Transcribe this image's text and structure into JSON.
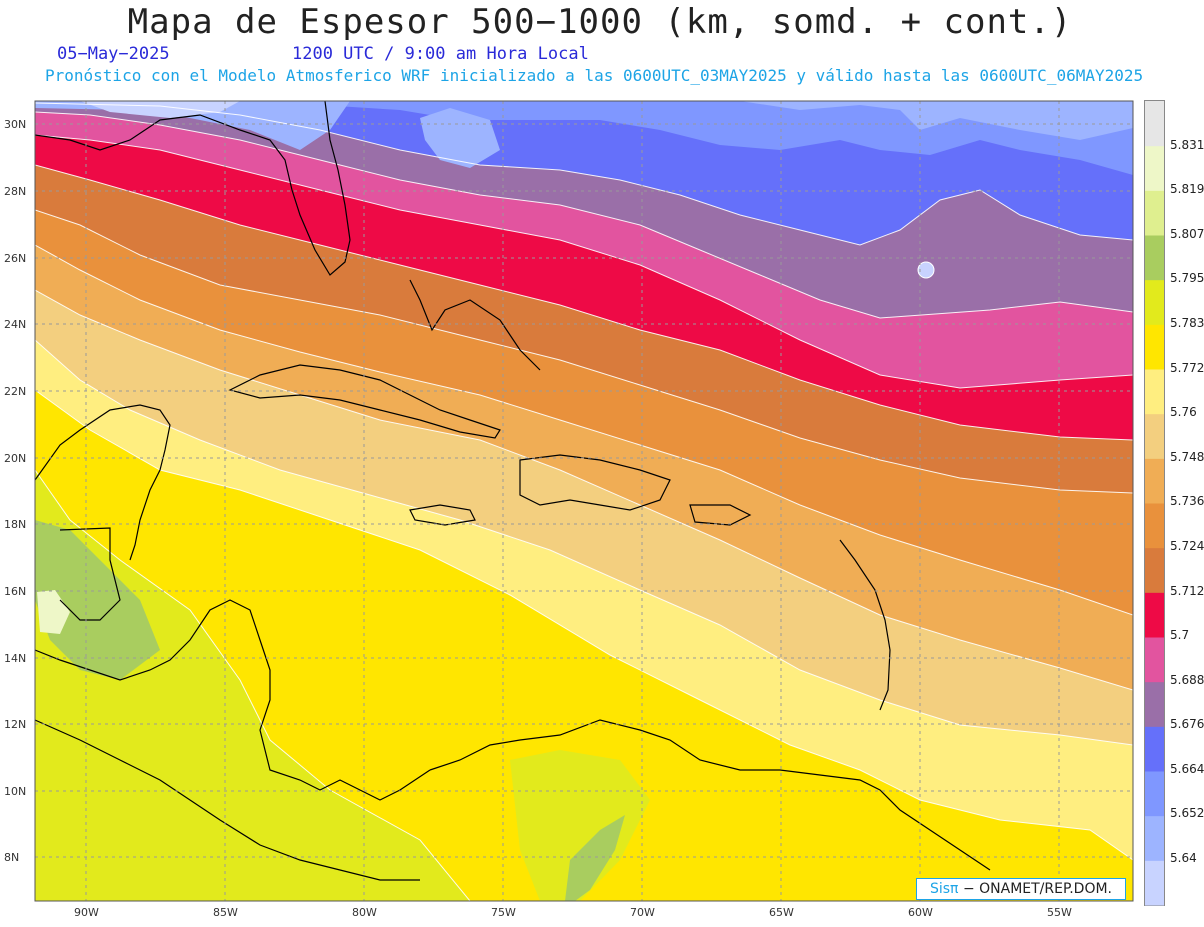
{
  "header": {
    "title": "Mapa de Espesor 500−1000 (km, somd. + cont.)",
    "date": "05−May−2025",
    "time": "1200 UTC / 9:00 am Hora Local",
    "subtitle": "Pronóstico con el Modelo Atmosferico WRF inicializado a las 0600UTC_03MAY2025 y válido hasta las  0600UTC_06MAY2025"
  },
  "credit": {
    "brand": "Sisπ",
    "org": "− ONAMET/REP.DOM."
  },
  "map": {
    "lat_ticks": [
      "30N",
      "28N",
      "26N",
      "24N",
      "22N",
      "20N",
      "18N",
      "16N",
      "14N",
      "12N",
      "10N",
      "8N"
    ],
    "lon_ticks": [
      "90W",
      "85W",
      "80W",
      "75W",
      "70W",
      "65W",
      "60W",
      "55W"
    ],
    "lat_range": [
      6.8,
      30.8
    ],
    "lon_range": [
      -91.8,
      -52.5
    ]
  },
  "colorbar": {
    "labels": [
      "5.831",
      "5.819",
      "5.807",
      "5.795",
      "5.783",
      "5.772",
      "5.76",
      "5.748",
      "5.736",
      "5.724",
      "5.712",
      "5.7",
      "5.688",
      "5.676",
      "5.664",
      "5.652",
      "5.64"
    ],
    "colors": [
      "#c8d3ff",
      "#9db4ff",
      "#7f97ff",
      "#6570fa",
      "#9a6fa8",
      "#e2549f",
      "#ee0a46",
      "#d97b3c",
      "#e9913c",
      "#f0ad55",
      "#f3cf7f",
      "#ffee80",
      "#ffe600",
      "#e2ea1c",
      "#a9cd5f",
      "#dfef8f",
      "#eef7c8",
      "#e6e6e6"
    ]
  }
}
